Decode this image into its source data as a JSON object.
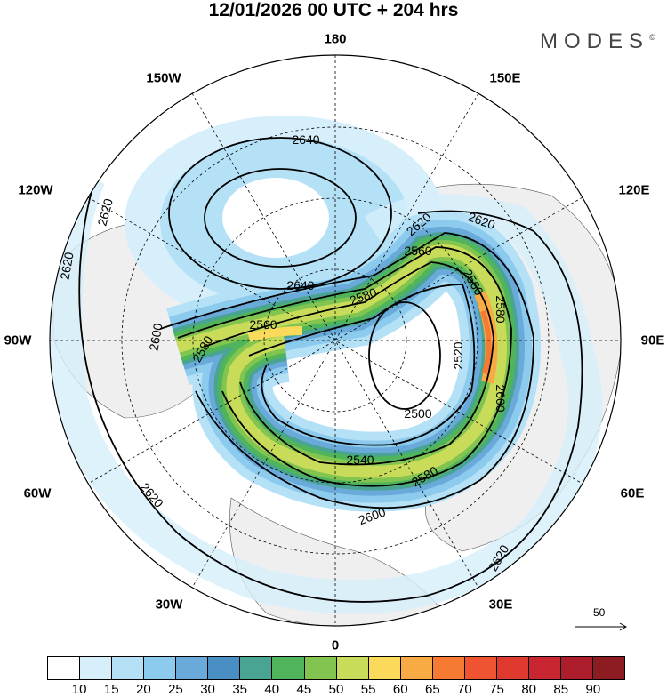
{
  "title": "12/01/2026  00 UTC  + 204 hrs",
  "logo": "MODES",
  "logo_mark": "©",
  "longitude_labels": [
    "180",
    "150E",
    "120E",
    "90E",
    "60E",
    "30E",
    "0",
    "30W",
    "60W",
    "90W",
    "120W",
    "150W"
  ],
  "contour_labels": [
    "2640",
    "2620",
    "2620",
    "2620",
    "2620",
    "2640",
    "2580",
    "2560",
    "2560",
    "2560",
    "2600",
    "2580",
    "2580",
    "2600",
    "2520",
    "2500",
    "2540",
    "2580",
    "2600",
    "2620",
    "2620"
  ],
  "vector_scale": {
    "label": "50"
  },
  "colorbar": {
    "ticks": [
      "10",
      "15",
      "20",
      "25",
      "30",
      "35",
      "40",
      "45",
      "50",
      "55",
      "60",
      "65",
      "70",
      "75",
      "80",
      "85",
      "90"
    ],
    "colors": [
      "#ffffff",
      "#d6effb",
      "#b5e1f7",
      "#8ccaee",
      "#6aaada",
      "#4a8fc4",
      "#4aa494",
      "#50b45a",
      "#82c450",
      "#c9dc5a",
      "#fbd95a",
      "#f8aa45",
      "#f77a32",
      "#ee5432",
      "#e03a30",
      "#c82630",
      "#ad1e2c",
      "#8c1c22"
    ]
  }
}
